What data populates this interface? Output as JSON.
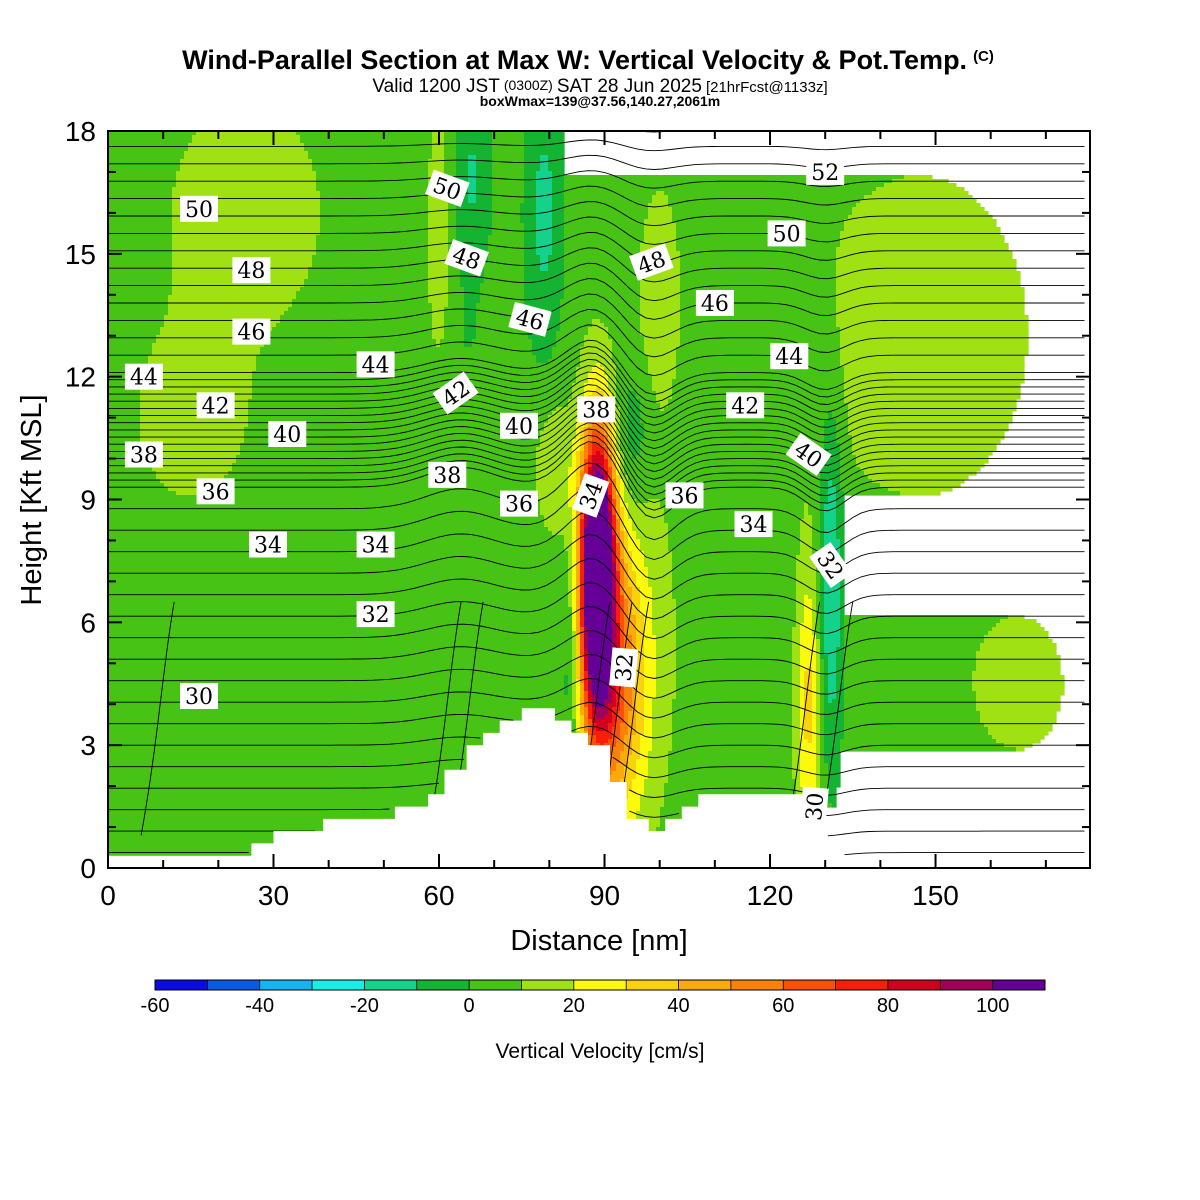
{
  "header": {
    "title_main": "Wind-Parallel Section at Max W: Vertical Velocity & Pot.Temp.",
    "title_mark": "(C)",
    "valid_a": "Valid 1200 JST",
    "valid_b": "(0300Z)",
    "valid_c": "SAT 28 Jun 2025",
    "valid_d": "[21hrFcst@1133z]",
    "box_line": "boxWmax=139@37.56,140.27,2061m"
  },
  "chart_data": {
    "type": "heatmap",
    "xlabel": "Distance [nm]",
    "ylabel": "Height [Kft MSL]",
    "xlim": [
      0,
      178
    ],
    "ylim": [
      0,
      18
    ],
    "x_ticks": [
      0,
      30,
      60,
      90,
      120,
      150
    ],
    "y_ticks": [
      0,
      3,
      6,
      9,
      12,
      15,
      18
    ],
    "colorbar": {
      "label": "Vertical Velocity [cm/s]",
      "levels": [
        -60,
        -50,
        -40,
        -30,
        -20,
        -10,
        0,
        10,
        20,
        30,
        40,
        50,
        60,
        70,
        80,
        90,
        100,
        110
      ],
      "tick_labels": [
        "-60",
        "-40",
        "-20",
        "0",
        "20",
        "40",
        "60",
        "80",
        "100"
      ],
      "tick_values": [
        -60,
        -40,
        -20,
        0,
        20,
        40,
        60,
        80,
        100
      ],
      "colors": [
        "#0a0ae6",
        "#0a5ae6",
        "#14b4f0",
        "#14f0e6",
        "#14d28c",
        "#14b432",
        "#46c314",
        "#a0e114",
        "#fafa0a",
        "#fad20a",
        "#faaa0a",
        "#fa820a",
        "#fa500a",
        "#fa1e0a",
        "#d2001e",
        "#a0005a",
        "#640096"
      ]
    },
    "background_value": 5,
    "terrain_kft": [
      [
        0,
        0.3
      ],
      [
        26,
        0.3
      ],
      [
        26,
        0.6
      ],
      [
        30,
        0.6
      ],
      [
        30,
        0.9
      ],
      [
        39,
        0.9
      ],
      [
        39,
        1.2
      ],
      [
        52,
        1.2
      ],
      [
        52,
        1.5
      ],
      [
        58,
        1.5
      ],
      [
        58,
        1.8
      ],
      [
        61,
        1.8
      ],
      [
        61,
        2.4
      ],
      [
        65,
        2.4
      ],
      [
        65,
        3.0
      ],
      [
        68,
        3.0
      ],
      [
        68,
        3.3
      ],
      [
        71,
        3.3
      ],
      [
        71,
        3.6
      ],
      [
        75,
        3.6
      ],
      [
        75,
        3.9
      ],
      [
        81,
        3.9
      ],
      [
        81,
        3.6
      ],
      [
        84,
        3.6
      ],
      [
        84,
        3.3
      ],
      [
        87,
        3.3
      ],
      [
        87,
        3.0
      ],
      [
        91,
        3.0
      ],
      [
        91,
        2.1
      ],
      [
        94,
        2.1
      ],
      [
        94,
        1.2
      ],
      [
        98,
        1.2
      ],
      [
        98,
        0.9
      ],
      [
        101,
        0.9
      ],
      [
        101,
        1.2
      ],
      [
        104,
        1.2
      ],
      [
        104,
        1.5
      ],
      [
        107,
        1.5
      ],
      [
        107,
        1.8
      ],
      [
        126,
        1.8
      ],
      [
        126,
        1.2
      ],
      [
        130,
        1.2
      ],
      [
        130,
        0.6
      ],
      [
        133,
        0.6
      ],
      [
        133,
        0.3
      ],
      [
        178,
        0.3
      ]
    ],
    "w_features": [
      {
        "x": 88.5,
        "y": 6.8,
        "rx": 3.2,
        "ry": 3.6,
        "peak": 105
      },
      {
        "x": 92,
        "y": 4.5,
        "rx": 5,
        "ry": 3.2,
        "peak": 45
      },
      {
        "x": 89,
        "y": 8.2,
        "rx": 3,
        "ry": 2.6,
        "peak": 50
      },
      {
        "x": 95,
        "y": 5.5,
        "rx": 8,
        "ry": 5,
        "peak": 12
      },
      {
        "x": 81,
        "y": 9.8,
        "rx": 3.5,
        "ry": 1.6,
        "peak": 14
      },
      {
        "x": 127,
        "y": 4.0,
        "rx": 2.2,
        "ry": 3.5,
        "peak": 28
      },
      {
        "x": 131,
        "y": 7.0,
        "rx": 2.2,
        "ry": 4.5,
        "peak": -25
      },
      {
        "x": 84,
        "y": 5.0,
        "rx": 2.2,
        "ry": 2.8,
        "peak": -15
      },
      {
        "x": 79,
        "y": 16.0,
        "rx": 3.5,
        "ry": 3.5,
        "peak": -18
      },
      {
        "x": 66,
        "y": 16.8,
        "rx": 3.5,
        "ry": 2.5,
        "peak": -16
      },
      {
        "x": 95,
        "y": 10.5,
        "rx": 3.5,
        "ry": 1.8,
        "peak": -14
      },
      {
        "x": 60,
        "y": 15.5,
        "rx": 2,
        "ry": 3,
        "peak": 14
      },
      {
        "x": 100,
        "y": 14.0,
        "rx": 3.5,
        "ry": 2.5,
        "peak": 14
      },
      {
        "x": 65,
        "y": 12.8,
        "rx": 4,
        "ry": 1.2,
        "peak": -4
      },
      {
        "x": 147,
        "y": 13.0,
        "rx": 20,
        "ry": 4,
        "peak": 13
      },
      {
        "x": 25,
        "y": 16.0,
        "rx": 15,
        "ry": 3,
        "peak": 11
      },
      {
        "x": 165,
        "y": 4.5,
        "rx": 9,
        "ry": 1.8,
        "peak": 11
      },
      {
        "x": 15,
        "y": 11.0,
        "rx": 12,
        "ry": 2.5,
        "peak": 9
      },
      {
        "x": 55,
        "y": 3.0,
        "rx": 10,
        "ry": 1.8,
        "peak": -4
      }
    ],
    "theta_contours": [
      {
        "value": 30,
        "label": "30",
        "lx": 16.5,
        "ly": 4.2
      },
      {
        "value": 32,
        "label": "32",
        "lx": 48.5,
        "ly": 6.2
      },
      {
        "value": 34,
        "label": "34",
        "lx": 29.0,
        "ly": 7.9
      },
      {
        "value": 36,
        "label": "36",
        "lx": 19.5,
        "ly": 9.2
      },
      {
        "value": 38,
        "label": "38",
        "lx": 6.5,
        "ly": 10.1
      },
      {
        "value": 40,
        "label": "40",
        "lx": 32.5,
        "ly": 10.6
      },
      {
        "value": 42,
        "label": "42",
        "lx": 19.5,
        "ly": 11.3
      },
      {
        "value": 44,
        "label": "44",
        "lx": 6.5,
        "ly": 12.0
      },
      {
        "value": 46,
        "label": "46",
        "lx": 26.0,
        "ly": 13.1
      },
      {
        "value": 48,
        "label": "48",
        "lx": 26.0,
        "ly": 14.6
      },
      {
        "value": 50,
        "label": "50",
        "lx": 16.5,
        "ly": 16.1
      },
      {
        "value": 52,
        "label": "52",
        "lx": 130.0,
        "ly": 17.0
      }
    ],
    "extra_labels": [
      {
        "label": "30",
        "x": 128,
        "y": 1.5,
        "rot": -85
      },
      {
        "label": "32",
        "x": 93.5,
        "y": 4.9,
        "rot": -85
      },
      {
        "label": "32",
        "x": 131,
        "y": 7.4,
        "rot": 55
      },
      {
        "label": "34",
        "x": 48.5,
        "y": 7.9,
        "rot": 0
      },
      {
        "label": "34",
        "x": 87.5,
        "y": 9.1,
        "rot": -70
      },
      {
        "label": "34",
        "x": 117,
        "y": 8.4,
        "rot": 0
      },
      {
        "label": "36",
        "x": 74.5,
        "y": 8.9,
        "rot": 0
      },
      {
        "label": "36",
        "x": 104.5,
        "y": 9.1,
        "rot": 0
      },
      {
        "label": "38",
        "x": 61.5,
        "y": 9.6,
        "rot": 0
      },
      {
        "label": "38",
        "x": 88.5,
        "y": 11.2,
        "rot": 0
      },
      {
        "label": "40",
        "x": 74.5,
        "y": 10.8,
        "rot": 0
      },
      {
        "label": "40",
        "x": 127,
        "y": 10.1,
        "rot": 35
      },
      {
        "label": "42",
        "x": 63,
        "y": 11.6,
        "rot": -35
      },
      {
        "label": "42",
        "x": 115.5,
        "y": 11.3,
        "rot": 0
      },
      {
        "label": "44",
        "x": 48.5,
        "y": 12.3,
        "rot": 0
      },
      {
        "label": "44",
        "x": 123.5,
        "y": 12.5,
        "rot": 0
      },
      {
        "label": "46",
        "x": 76.5,
        "y": 13.4,
        "rot": 15
      },
      {
        "label": "46",
        "x": 110,
        "y": 13.8,
        "rot": 0
      },
      {
        "label": "48",
        "x": 65,
        "y": 14.9,
        "rot": 20
      },
      {
        "label": "48",
        "x": 98.5,
        "y": 14.8,
        "rot": -20
      },
      {
        "label": "50",
        "x": 61.5,
        "y": 16.6,
        "rot": 20
      },
      {
        "label": "50",
        "x": 123,
        "y": 15.5,
        "rot": 0
      }
    ]
  }
}
